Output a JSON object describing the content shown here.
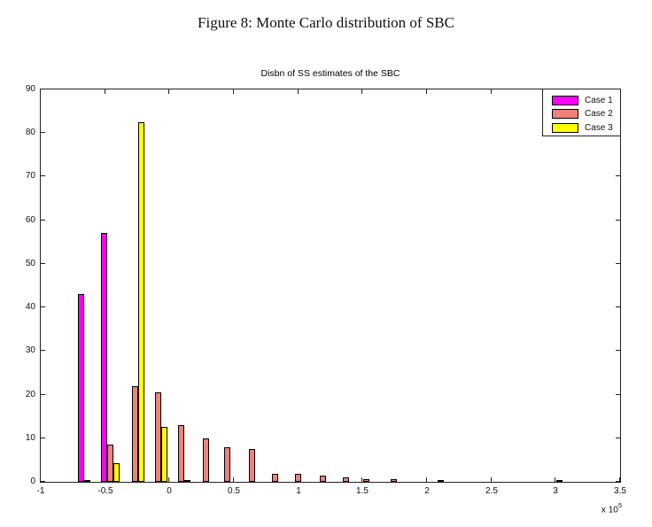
{
  "figure": {
    "caption": "Figure 8: Monte Carlo distribution of SBC"
  },
  "chart_data": {
    "type": "bar",
    "subtype": "grouped-histogram",
    "title": "Disbn of SS estimates of the SBC",
    "xlabel": "",
    "ylabel": "",
    "xlim": [
      -1,
      3.5
    ],
    "ylim": [
      0,
      90
    ],
    "grid": false,
    "x_tick_values": [
      -1,
      -0.5,
      0,
      0.5,
      1,
      1.5,
      2,
      2.5,
      3,
      3.5
    ],
    "x_tick_labels": [
      "-1",
      "-0.5",
      "0",
      "0.5",
      "1",
      "1.5",
      "2",
      "2.5",
      "3",
      "3.5"
    ],
    "y_tick_values": [
      0,
      10,
      20,
      30,
      40,
      50,
      60,
      70,
      80,
      90
    ],
    "y_tick_labels": [
      "0",
      "10",
      "20",
      "30",
      "40",
      "50",
      "60",
      "70",
      "80",
      "90"
    ],
    "axis_multiplier": {
      "prefix": "x 10",
      "exponent": "5"
    },
    "x_scale_note": "x-axis values are in units of 1e5",
    "legend": {
      "position": "top-right-inside"
    },
    "bin_centers": [
      -0.64,
      -0.46,
      -0.27,
      -0.09,
      0.09,
      0.28,
      0.45,
      0.64,
      0.82,
      1.0,
      1.19,
      1.37,
      1.53,
      1.74,
      2.11,
      3.03
    ],
    "series": [
      {
        "name": "Case 1",
        "color": "#FF00FF",
        "values": [
          43,
          57,
          0,
          0,
          0,
          0,
          0,
          0,
          0,
          0,
          0,
          0,
          0,
          0,
          0,
          0
        ]
      },
      {
        "name": "Case 2",
        "color": "#EF827B",
        "values": [
          0.4,
          8.5,
          22,
          20.5,
          13,
          10,
          8,
          7.5,
          1.9,
          1.9,
          1.4,
          1.1,
          0.7,
          0.6,
          0.4,
          0.25
        ]
      },
      {
        "name": "Case 3",
        "color": "#FFFF00",
        "values": [
          0,
          4.3,
          82.5,
          12.5,
          0.4,
          0,
          0,
          0,
          0,
          0,
          0,
          0,
          0,
          0,
          0,
          0
        ]
      }
    ],
    "bar_edge_color": "#000000"
  }
}
